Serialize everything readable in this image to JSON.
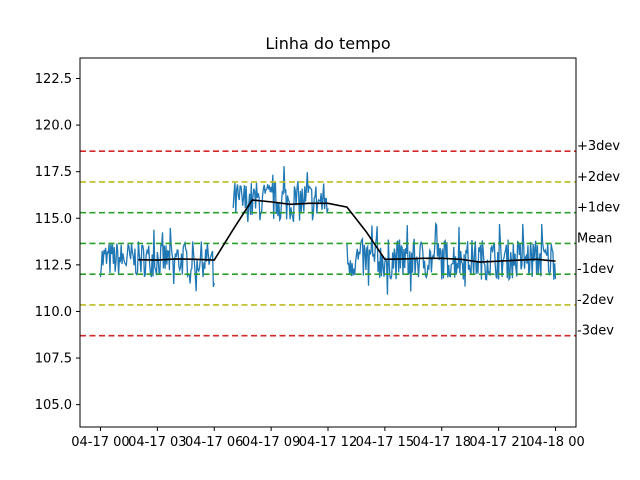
{
  "chart_data": {
    "type": "line",
    "title": "Linha do tempo",
    "xlabel": "",
    "ylabel": "",
    "x_is_datetime": true,
    "xlim": [
      "04-17 00",
      "04-18 00"
    ],
    "ylim": [
      103.8,
      123.6
    ],
    "x_ticks": [
      "04-17 00",
      "04-17 03",
      "04-17 06",
      "04-17 09",
      "04-17 12",
      "04-17 15",
      "04-17 18",
      "04-17 21",
      "04-18 00"
    ],
    "y_ticks": [
      "105.0",
      "107.5",
      "110.0",
      "112.5",
      "115.0",
      "117.5",
      "120.0",
      "122.5"
    ],
    "grid": false,
    "colors": {
      "raw": "#1f77b4",
      "rolling": "#000000",
      "sigma3": "#d62728",
      "sigma2": "#bcbd22",
      "sigma1": "#2ca02c",
      "mean": "#2ca02c"
    },
    "control_lines": [
      {
        "label": "+3dev",
        "value": 118.6,
        "style": "dashed",
        "color": "#d62728"
      },
      {
        "label": "+2dev",
        "value": 116.95,
        "style": "dashed",
        "color": "#bcbd22"
      },
      {
        "label": "+1dev",
        "value": 115.3,
        "style": "dashed",
        "color": "#2ca02c"
      },
      {
        "label": "Mean",
        "value": 113.65,
        "style": "dashed",
        "color": "#2ca02c"
      },
      {
        "label": "-1dev",
        "value": 112.0,
        "style": "dashed",
        "color": "#2ca02c"
      },
      {
        "label": "-2dev",
        "value": 110.35,
        "style": "dashed",
        "color": "#bcbd22"
      },
      {
        "label": "-3dev",
        "value": 108.7,
        "style": "dashed",
        "color": "#d62728"
      }
    ],
    "series": [
      {
        "kind": "rolling_mean",
        "x": [
          "04-17 02",
          "04-17 03",
          "04-17 04",
          "04-17 05",
          "04-17 06",
          "04-17 07",
          "04-17 08",
          "04-17 09",
          "04-17 10",
          "04-17 11",
          "04-17 12",
          "04-17 13",
          "04-17 14",
          "04-17 15",
          "04-17 16",
          "04-17 17",
          "04-17 18",
          "04-17 19",
          "04-17 20",
          "04-17 21",
          "04-17 22",
          "04-17 23",
          "04-18 00"
        ],
        "values": [
          112.78,
          112.76,
          112.82,
          112.8,
          112.76,
          114.4,
          115.98,
          115.88,
          115.75,
          115.8,
          115.8,
          115.6,
          114.3,
          112.8,
          112.82,
          112.85,
          112.85,
          112.8,
          112.65,
          112.7,
          112.75,
          112.8,
          112.7
        ]
      },
      {
        "kind": "raw",
        "segments": [
          {
            "x_start": "04-17 00",
            "x_end": "04-17 06",
            "mean": 112.8,
            "low": 111.0,
            "high": 114.5
          },
          {
            "x_start": "04-17 07",
            "x_end": "04-17 12",
            "mean": 115.9,
            "low": 113.8,
            "high": 117.8
          },
          {
            "x_start": "04-17 13",
            "x_end": "04-18 00",
            "mean": 112.8,
            "low": 110.7,
            "high": 114.7
          }
        ]
      }
    ]
  }
}
